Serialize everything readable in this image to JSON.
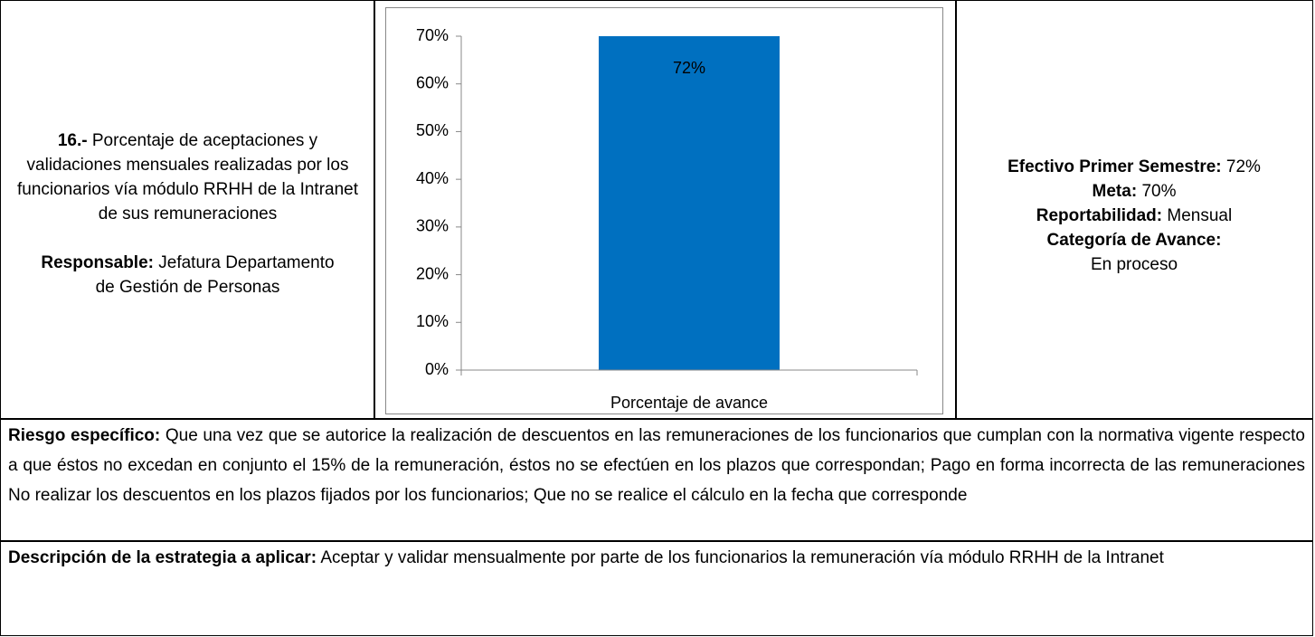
{
  "indicator": {
    "number": "16.-",
    "title": "Porcentaje de aceptaciones y validaciones mensuales realizadas por los funcionarios vía módulo RRHH de la Intranet de sus remuneraciones",
    "responsible_label": "Responsable:",
    "responsible": "Jefatura Departamento de Gestión de Personas"
  },
  "chart_data": {
    "type": "bar",
    "categories": [
      "Porcentaje de avance"
    ],
    "values": [
      72
    ],
    "value_labels": [
      "72%"
    ],
    "color": "#0070c0",
    "ylim": [
      0,
      70
    ],
    "yticks": [
      {
        "value": 0,
        "label": "0%"
      },
      {
        "value": 10,
        "label": "10%"
      },
      {
        "value": 20,
        "label": "20%"
      },
      {
        "value": 30,
        "label": "30%"
      },
      {
        "value": 40,
        "label": "40%"
      },
      {
        "value": 50,
        "label": "50%"
      },
      {
        "value": 60,
        "label": "60%"
      },
      {
        "value": 70,
        "label": "70%"
      }
    ]
  },
  "summary": [
    {
      "label": "Efectivo Primer Semestre:",
      "value": "72%"
    },
    {
      "label": "Meta:",
      "value": "70%"
    },
    {
      "label": "Reportabilidad:",
      "value": "Mensual"
    },
    {
      "label": "Categoría de Avance:",
      "value": "En proceso"
    }
  ],
  "risk": {
    "label": "Riesgo específico:",
    "text": "Que una vez que se autorice la realización de descuentos en las remuneraciones de los funcionarios que cumplan con la normativa vigente respecto a que éstos no excedan en conjunto el 15% de la remuneración, éstos no se efectúen en los plazos que correspondan; Pago en forma incorrecta de las remuneraciones No realizar los descuentos en los plazos fijados por los funcionarios; Que no se realice el cálculo en la fecha que corresponde"
  },
  "strategy": {
    "label": "Descripción de la estrategia a aplicar:",
    "text": "Aceptar y validar mensualmente por parte de los funcionarios la remuneración vía módulo RRHH de la Intranet"
  }
}
